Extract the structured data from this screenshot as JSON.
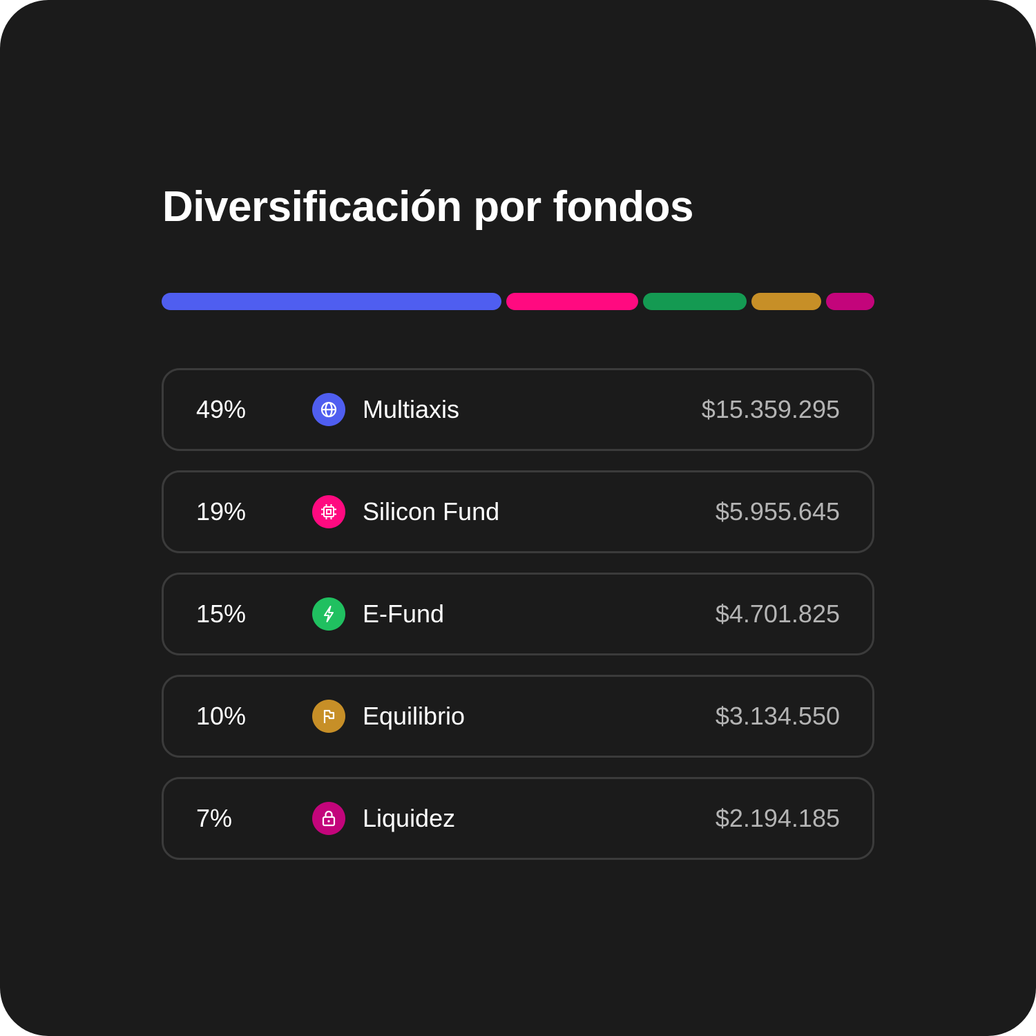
{
  "title": "Diversificación por fondos",
  "funds": [
    {
      "percent": "49%",
      "share": 49,
      "name": "Multiaxis",
      "amount": "$15.359.295",
      "color": "#4f5ef0",
      "icon": "globe-icon"
    },
    {
      "percent": "19%",
      "share": 19,
      "name": "Silicon Fund",
      "amount": "$5.955.645",
      "color": "#ff0a80",
      "icon": "chip-icon"
    },
    {
      "percent": "15%",
      "share": 15,
      "name": "E-Fund",
      "amount": "$4.701.825",
      "color": "#149a52",
      "icon": "lightning-icon"
    },
    {
      "percent": "10%",
      "share": 10,
      "name": "Equilibrio",
      "amount": "$3.134.550",
      "color": "#c78f27",
      "icon": "flag-icon"
    },
    {
      "percent": "7%",
      "share": 7,
      "name": "Liquidez",
      "amount": "$2.194.185",
      "color": "#c3057b",
      "icon": "lock-icon"
    }
  ],
  "icon_colors": [
    "#4f5ef0",
    "#ff0a80",
    "#20c060",
    "#c78f27",
    "#c3057b"
  ]
}
